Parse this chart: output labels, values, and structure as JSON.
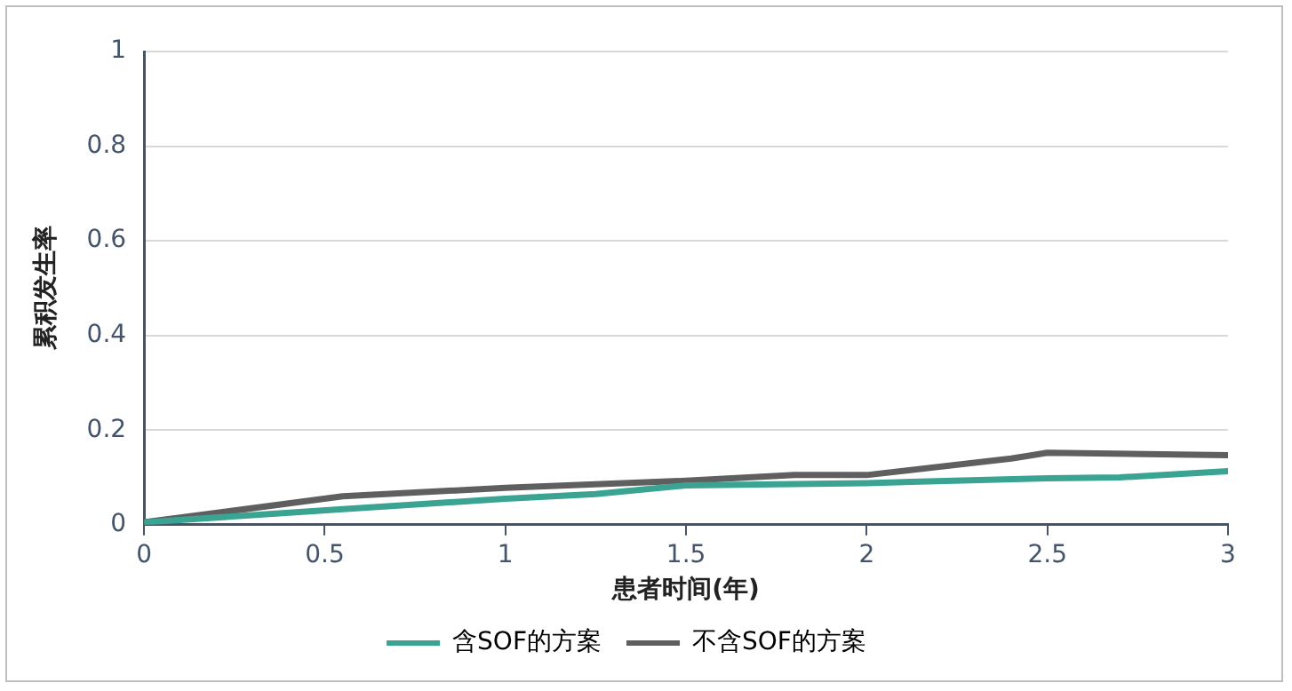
{
  "chart_data": {
    "type": "line",
    "xlabel": "患者时间(年)",
    "ylabel": "累积发生率",
    "xlim": [
      0,
      3
    ],
    "xticks": [
      0,
      0.5,
      1,
      1.5,
      2,
      2.5,
      3
    ],
    "ylim": [
      0,
      1
    ],
    "yticks": [
      0,
      0.2,
      0.4,
      0.6,
      0.8,
      1
    ],
    "grid": "y",
    "legend": "bottom",
    "marker": "none",
    "line_style": "solid",
    "series": [
      {
        "name": "含SOF的方案",
        "color": "#3aa391",
        "x": [
          0,
          0.55,
          1,
          1.25,
          1.5,
          2,
          2.5,
          2.7,
          3
        ],
        "values": [
          0.005,
          0.033,
          0.055,
          0.065,
          0.083,
          0.088,
          0.098,
          0.1,
          0.113
        ]
      },
      {
        "name": "不含SOF的方案",
        "color": "#5f5f5f",
        "x": [
          0,
          0.55,
          1,
          1.5,
          1.8,
          2,
          2.4,
          2.5,
          3
        ],
        "values": [
          0.005,
          0.06,
          0.078,
          0.093,
          0.105,
          0.105,
          0.14,
          0.152,
          0.147
        ]
      }
    ]
  }
}
